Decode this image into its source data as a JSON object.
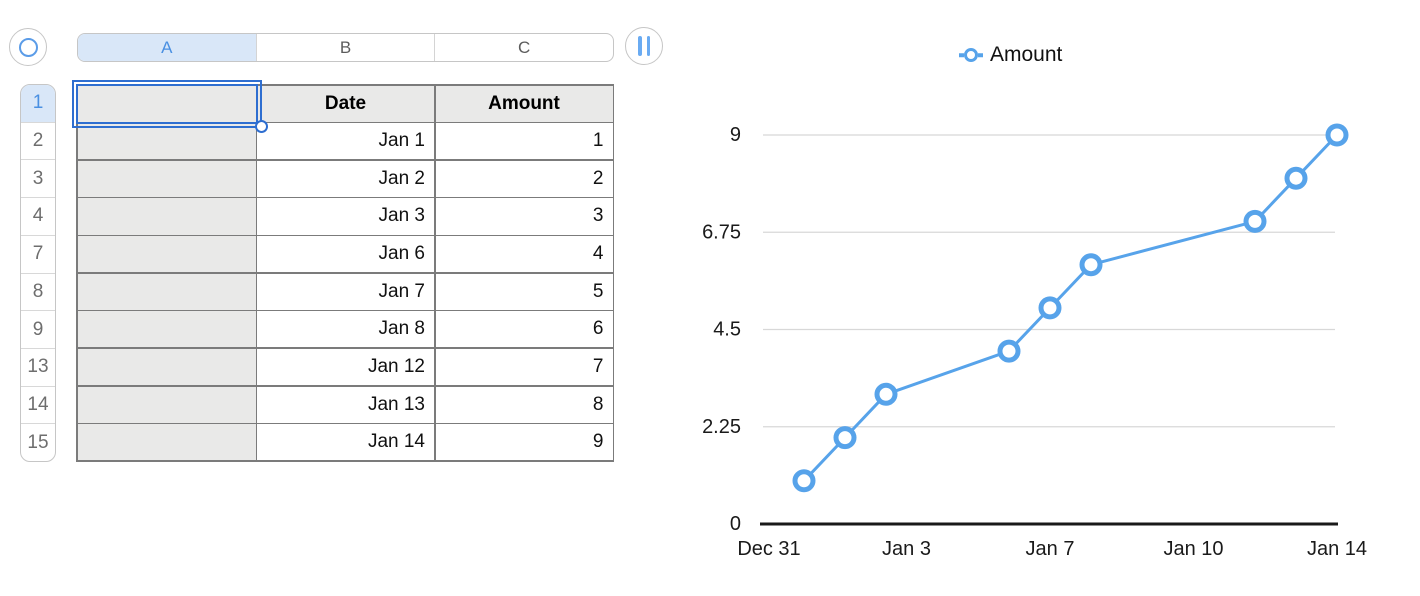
{
  "spreadsheet": {
    "column_bar": {
      "columns": [
        {
          "label": "A",
          "selected": true
        },
        {
          "label": "B",
          "selected": false
        },
        {
          "label": "C",
          "selected": false
        }
      ]
    },
    "rows": [
      {
        "num": "1",
        "a": "",
        "b": "Date",
        "c": "Amount",
        "header_row": true,
        "selected": true
      },
      {
        "num": "2",
        "a": "",
        "b": "Jan 1",
        "c": "1"
      },
      {
        "num": "3",
        "a": "",
        "b": "Jan 2",
        "c": "2"
      },
      {
        "num": "4",
        "a": "",
        "b": "Jan 3",
        "c": "3"
      },
      {
        "num": "7",
        "a": "",
        "b": "Jan 6",
        "c": "4"
      },
      {
        "num": "8",
        "a": "",
        "b": "Jan 7",
        "c": "5"
      },
      {
        "num": "9",
        "a": "",
        "b": "Jan 8",
        "c": "6"
      },
      {
        "num": "13",
        "a": "",
        "b": "Jan 12",
        "c": "7"
      },
      {
        "num": "14",
        "a": "",
        "b": "Jan 13",
        "c": "8"
      },
      {
        "num": "15",
        "a": "",
        "b": "Jan 14",
        "c": "9"
      }
    ],
    "selection": {
      "cell": "A1"
    }
  },
  "chart_data": {
    "type": "line",
    "title": "",
    "series": [
      {
        "name": "Amount",
        "color": "#57a3ea",
        "marker": "open-circle",
        "points": [
          {
            "label": "Jan 1",
            "day": 1,
            "value": 1
          },
          {
            "label": "Jan 2",
            "day": 2,
            "value": 2
          },
          {
            "label": "Jan 3",
            "day": 3,
            "value": 3
          },
          {
            "label": "Jan 6",
            "day": 6,
            "value": 4
          },
          {
            "label": "Jan 7",
            "day": 7,
            "value": 5
          },
          {
            "label": "Jan 8",
            "day": 8,
            "value": 6
          },
          {
            "label": "Jan 12",
            "day": 12,
            "value": 7
          },
          {
            "label": "Jan 13",
            "day": 13,
            "value": 8
          },
          {
            "label": "Jan 14",
            "day": 14,
            "value": 9
          }
        ]
      }
    ],
    "x_tick_labels": [
      "Dec 31",
      "Jan 3",
      "Jan 7",
      "Jan 10",
      "Jan 14"
    ],
    "x_range_days": [
      0,
      14
    ],
    "y_ticks": [
      0,
      2.25,
      4.5,
      6.75,
      9
    ],
    "y_tick_labels": [
      "0",
      "2.25",
      "4.5",
      "6.75",
      "9"
    ],
    "ylim": [
      0,
      9
    ],
    "grid": true,
    "legend_position": "top"
  },
  "colors": {
    "series_blue": "#57a3ea",
    "selection_blue": "#2e6ed0",
    "selected_header_bg": "#d9e7f8",
    "selected_header_text": "#4a90e2",
    "cell_header_bg": "#e9e9e8",
    "table_border": "#7b7b7b",
    "axis_line": "#1a1a1a",
    "gridline": "#d8d8d8"
  }
}
